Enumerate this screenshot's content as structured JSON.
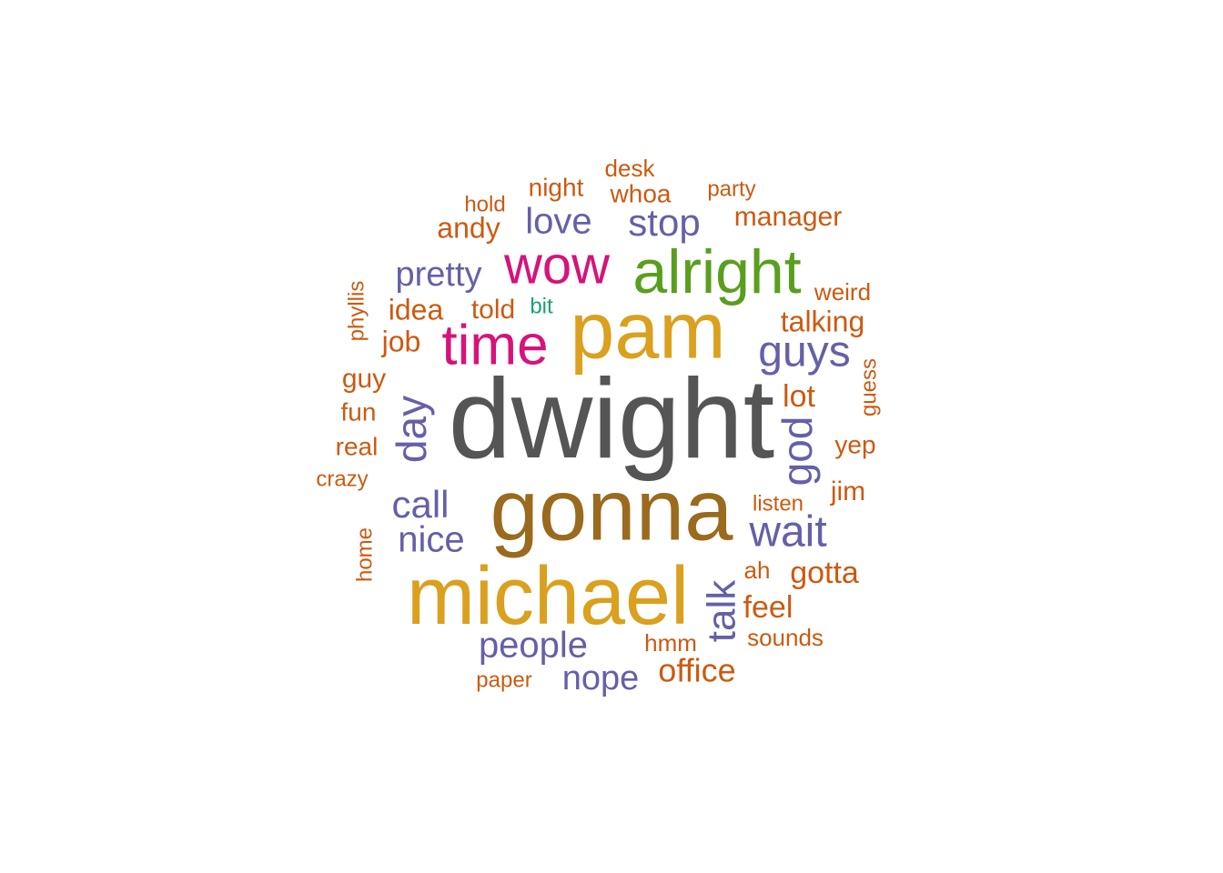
{
  "colors": {
    "dark_gray": "#555555",
    "gold": "#DAA01E",
    "brown": "#9A6A1E",
    "magenta": "#D6137A",
    "green": "#5A9E1E",
    "purple": "#6460A8",
    "orange": "#CC5A10",
    "teal": "#1E9E78"
  },
  "words": [
    {
      "text": "dwight",
      "weight": 10,
      "color": "dark_gray",
      "rotate": false
    },
    {
      "text": "gonna",
      "weight": 8,
      "color": "brown",
      "rotate": false
    },
    {
      "text": "michael",
      "weight": 8,
      "color": "gold",
      "rotate": false
    },
    {
      "text": "pam",
      "weight": 8,
      "color": "gold",
      "rotate": false
    },
    {
      "text": "alright",
      "weight": 6,
      "color": "green",
      "rotate": false
    },
    {
      "text": "time",
      "weight": 6,
      "color": "magenta",
      "rotate": false
    },
    {
      "text": "wow",
      "weight": 6,
      "color": "magenta",
      "rotate": false
    },
    {
      "text": "guys",
      "weight": 5,
      "color": "purple",
      "rotate": false
    },
    {
      "text": "wait",
      "weight": 5,
      "color": "purple",
      "rotate": false
    },
    {
      "text": "god",
      "weight": 5,
      "color": "purple",
      "rotate": true
    },
    {
      "text": "day",
      "weight": 5,
      "color": "purple",
      "rotate": true
    },
    {
      "text": "talk",
      "weight": 5,
      "color": "purple",
      "rotate": true
    },
    {
      "text": "call",
      "weight": 4,
      "color": "purple",
      "rotate": false
    },
    {
      "text": "nice",
      "weight": 4,
      "color": "purple",
      "rotate": false
    },
    {
      "text": "people",
      "weight": 4,
      "color": "purple",
      "rotate": false
    },
    {
      "text": "nope",
      "weight": 4,
      "color": "purple",
      "rotate": false
    },
    {
      "text": "love",
      "weight": 4,
      "color": "purple",
      "rotate": false
    },
    {
      "text": "stop",
      "weight": 4,
      "color": "purple",
      "rotate": false
    },
    {
      "text": "pretty",
      "weight": 4,
      "color": "purple",
      "rotate": false
    },
    {
      "text": "office",
      "weight": 3,
      "color": "orange",
      "rotate": false
    },
    {
      "text": "gotta",
      "weight": 3,
      "color": "orange",
      "rotate": false
    },
    {
      "text": "feel",
      "weight": 3,
      "color": "orange",
      "rotate": false
    },
    {
      "text": "lot",
      "weight": 3,
      "color": "orange",
      "rotate": false
    },
    {
      "text": "talking",
      "weight": 3,
      "color": "orange",
      "rotate": false
    },
    {
      "text": "idea",
      "weight": 3,
      "color": "orange",
      "rotate": false
    },
    {
      "text": "job",
      "weight": 3,
      "color": "orange",
      "rotate": false
    },
    {
      "text": "andy",
      "weight": 3,
      "color": "orange",
      "rotate": false
    },
    {
      "text": "manager",
      "weight": 3,
      "color": "orange",
      "rotate": false
    },
    {
      "text": "guy",
      "weight": 3,
      "color": "orange",
      "rotate": false
    },
    {
      "text": "told",
      "weight": 3,
      "color": "orange",
      "rotate": false
    },
    {
      "text": "jim",
      "weight": 3,
      "color": "orange",
      "rotate": false
    },
    {
      "text": "fun",
      "weight": 2,
      "color": "orange",
      "rotate": false
    },
    {
      "text": "real",
      "weight": 2,
      "color": "orange",
      "rotate": false
    },
    {
      "text": "yep",
      "weight": 2,
      "color": "orange",
      "rotate": false
    },
    {
      "text": "whoa",
      "weight": 2,
      "color": "orange",
      "rotate": false
    },
    {
      "text": "night",
      "weight": 2,
      "color": "orange",
      "rotate": false
    },
    {
      "text": "weird",
      "weight": 2,
      "color": "orange",
      "rotate": false
    },
    {
      "text": "ah",
      "weight": 2,
      "color": "orange",
      "rotate": false
    },
    {
      "text": "sounds",
      "weight": 2,
      "color": "orange",
      "rotate": false
    },
    {
      "text": "hmm",
      "weight": 2,
      "color": "orange",
      "rotate": false
    },
    {
      "text": "guess",
      "weight": 2,
      "color": "orange",
      "rotate": true
    },
    {
      "text": "phyllis",
      "weight": 2,
      "color": "orange",
      "rotate": true
    },
    {
      "text": "home",
      "weight": 2,
      "color": "orange",
      "rotate": true
    },
    {
      "text": "hold",
      "weight": 1,
      "color": "orange",
      "rotate": false
    },
    {
      "text": "desk",
      "weight": 1,
      "color": "orange",
      "rotate": false
    },
    {
      "text": "party",
      "weight": 1,
      "color": "orange",
      "rotate": false
    },
    {
      "text": "crazy",
      "weight": 1,
      "color": "orange",
      "rotate": false
    },
    {
      "text": "listen",
      "weight": 1,
      "color": "orange",
      "rotate": false
    },
    {
      "text": "paper",
      "weight": 1,
      "color": "orange",
      "rotate": false
    },
    {
      "text": "bit",
      "weight": 1,
      "color": "teal",
      "rotate": false
    }
  ]
}
